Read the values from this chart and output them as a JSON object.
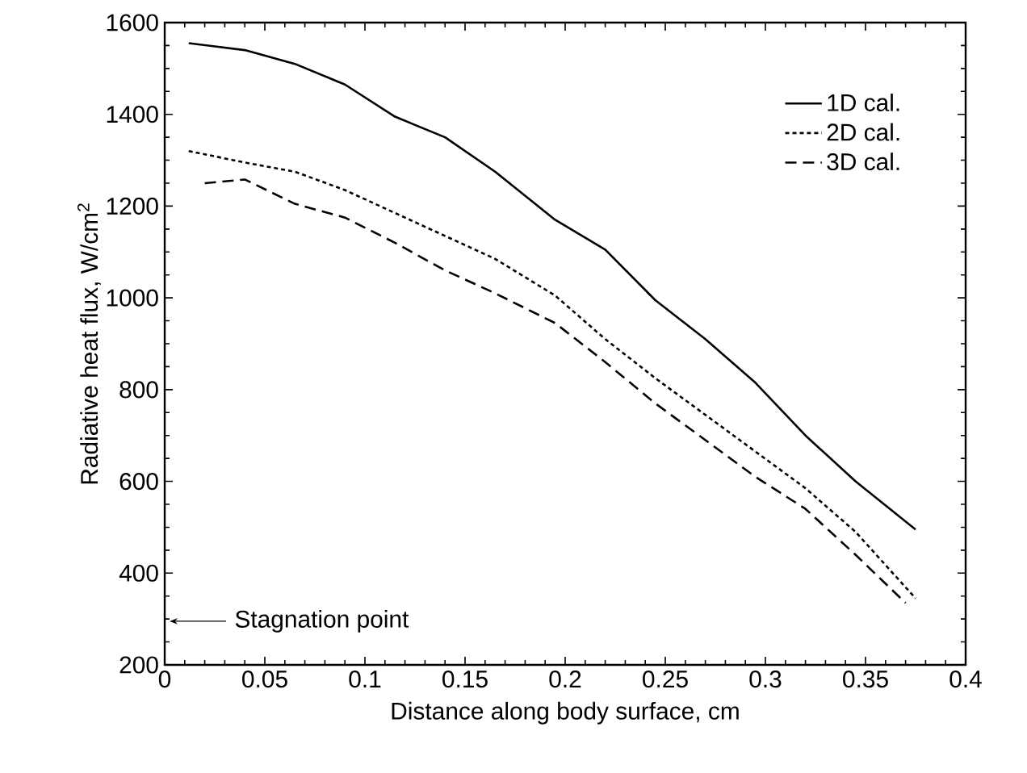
{
  "chart_data": {
    "type": "line",
    "xlabel": "Distance along body surface, cm",
    "ylabel": "Radiative heat flux, W/cm$^{2}$",
    "xlim": [
      0,
      0.4
    ],
    "xticks": [
      0,
      0.05,
      0.1,
      0.15,
      0.2,
      0.25,
      0.3,
      0.35,
      0.4
    ],
    "ylim": [
      200,
      1600
    ],
    "yticks": [
      200,
      400,
      600,
      800,
      1000,
      1200,
      1400,
      1600
    ],
    "legend": "top right",
    "grid": false,
    "marker": "none",
    "annotations": [
      "Stagnation point"
    ],
    "series": [
      {
        "name": "1D cal.",
        "color": "#000000",
        "line_style": "solid",
        "x": [
          0.012,
          0.04,
          0.065,
          0.09,
          0.115,
          0.14,
          0.165,
          0.195,
          0.22,
          0.245,
          0.27,
          0.295,
          0.32,
          0.345,
          0.375
        ],
        "values": [
          1555,
          1540,
          1510,
          1465,
          1395,
          1350,
          1275,
          1170,
          1105,
          995,
          910,
          815,
          700,
          600,
          495
        ]
      },
      {
        "name": "2D cal.",
        "color": "#000000",
        "line_style": "dotted",
        "x": [
          0.012,
          0.04,
          0.065,
          0.09,
          0.115,
          0.14,
          0.165,
          0.195,
          0.22,
          0.245,
          0.27,
          0.295,
          0.32,
          0.345,
          0.375
        ],
        "values": [
          1320,
          1295,
          1275,
          1235,
          1185,
          1135,
          1085,
          1005,
          910,
          825,
          745,
          665,
          585,
          490,
          345
        ]
      },
      {
        "name": "3D cal.",
        "color": "#000000",
        "line_style": "dashed",
        "x": [
          0.02,
          0.04,
          0.065,
          0.09,
          0.115,
          0.14,
          0.165,
          0.195,
          0.22,
          0.245,
          0.27,
          0.295,
          0.32,
          0.345,
          0.37
        ],
        "values": [
          1250,
          1258,
          1205,
          1175,
          1120,
          1060,
          1010,
          945,
          860,
          770,
          690,
          610,
          540,
          440,
          335
        ]
      }
    ]
  }
}
